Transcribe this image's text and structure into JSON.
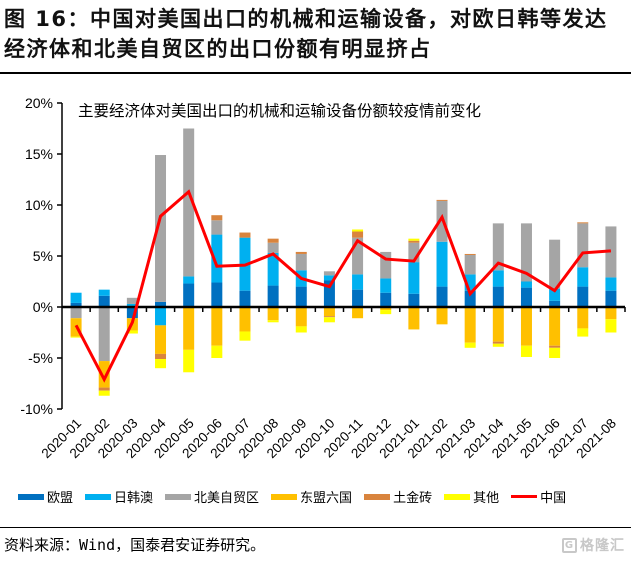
{
  "figure": {
    "title_line1": "图 16：中国对美国出口的机械和运输设备，对欧日韩等发达",
    "title_line2": "经济体和北美自贸区的出口份额有明显挤占",
    "source": "资料来源：Wind，国泰君安证券研究。",
    "watermark": "格隆汇",
    "watermark_logo": "G"
  },
  "chart_data": {
    "type": "bar",
    "subtype": "stacked-bar-with-line",
    "title": "主要经济体对美国出口的机械和运输设备份额较疫情前变化",
    "xlabel": "",
    "ylabel": "",
    "ylim": [
      -10,
      20
    ],
    "yticks": [
      -10,
      -5,
      0,
      5,
      10,
      15,
      20
    ],
    "ytick_labels": [
      "-10%",
      "-5%",
      "0%",
      "5%",
      "10%",
      "15%",
      "20%"
    ],
    "grid": false,
    "legend_position": "bottom",
    "categories": [
      "2020-01",
      "2020-02",
      "2020-03",
      "2020-04",
      "2020-05",
      "2020-06",
      "2020-07",
      "2020-08",
      "2020-09",
      "2020-10",
      "2020-11",
      "2020-12",
      "2021-01",
      "2021-02",
      "2021-03",
      "2021-04",
      "2021-05",
      "2021-06",
      "2021-07",
      "2021-08"
    ],
    "series": [
      {
        "name": "欧盟",
        "kind": "bar",
        "color": "#0070C0",
        "values": [
          0.4,
          1.1,
          -1.1,
          0.5,
          2.3,
          2.4,
          1.6,
          2.1,
          2.0,
          2.6,
          1.7,
          1.4,
          1.3,
          2.0,
          1.6,
          2.0,
          1.9,
          0.6,
          2.0,
          1.6
        ]
      },
      {
        "name": "日韩澳",
        "kind": "bar",
        "color": "#00B0F0",
        "values": [
          1.0,
          0.6,
          0.3,
          -1.8,
          0.7,
          4.7,
          5.2,
          3.2,
          1.6,
          0.5,
          1.5,
          1.4,
          3.1,
          4.4,
          1.6,
          1.6,
          0.6,
          1.2,
          1.9,
          1.3
        ]
      },
      {
        "name": "北美自贸区",
        "kind": "bar",
        "color": "#A5A5A5",
        "values": [
          -1.1,
          -5.3,
          0.6,
          14.4,
          14.5,
          1.4,
          0.0,
          1.0,
          1.6,
          0.4,
          3.6,
          2.6,
          1.9,
          4.0,
          1.9,
          4.6,
          5.7,
          4.8,
          4.3,
          5.0
        ]
      },
      {
        "name": "东盟六国",
        "kind": "bar",
        "color": "#FFC000",
        "values": [
          -1.8,
          -2.6,
          -1.2,
          -2.8,
          -4.2,
          -3.8,
          -2.4,
          -1.3,
          -1.9,
          -0.9,
          -1.1,
          -0.3,
          -2.2,
          -1.7,
          -3.5,
          -3.4,
          -3.8,
          -3.8,
          -2.1,
          -1.2
        ]
      },
      {
        "name": "土金砖",
        "kind": "bar",
        "color": "#D9843D",
        "values": [
          0.0,
          -0.3,
          0.0,
          -0.5,
          0.0,
          0.5,
          0.5,
          0.4,
          0.2,
          -0.1,
          0.6,
          0.0,
          0.2,
          0.1,
          0.1,
          -0.2,
          0.0,
          -0.2,
          0.1,
          0.0
        ]
      },
      {
        "name": "其他",
        "kind": "bar",
        "color": "#FFFF00",
        "values": [
          -0.1,
          -0.5,
          -0.3,
          -0.9,
          -2.2,
          -1.2,
          -0.9,
          -0.2,
          -0.6,
          -0.5,
          0.2,
          -0.4,
          0.2,
          0.0,
          -0.5,
          -0.3,
          -1.1,
          -1.0,
          -0.8,
          -1.3
        ]
      },
      {
        "name": "中国",
        "kind": "line",
        "color": "#FF0000",
        "values": [
          -1.8,
          -7.1,
          -1.5,
          8.9,
          11.3,
          4.0,
          4.1,
          5.2,
          2.8,
          2.0,
          6.5,
          4.7,
          4.5,
          8.8,
          1.3,
          4.3,
          3.3,
          1.6,
          5.3,
          5.5
        ]
      }
    ]
  }
}
